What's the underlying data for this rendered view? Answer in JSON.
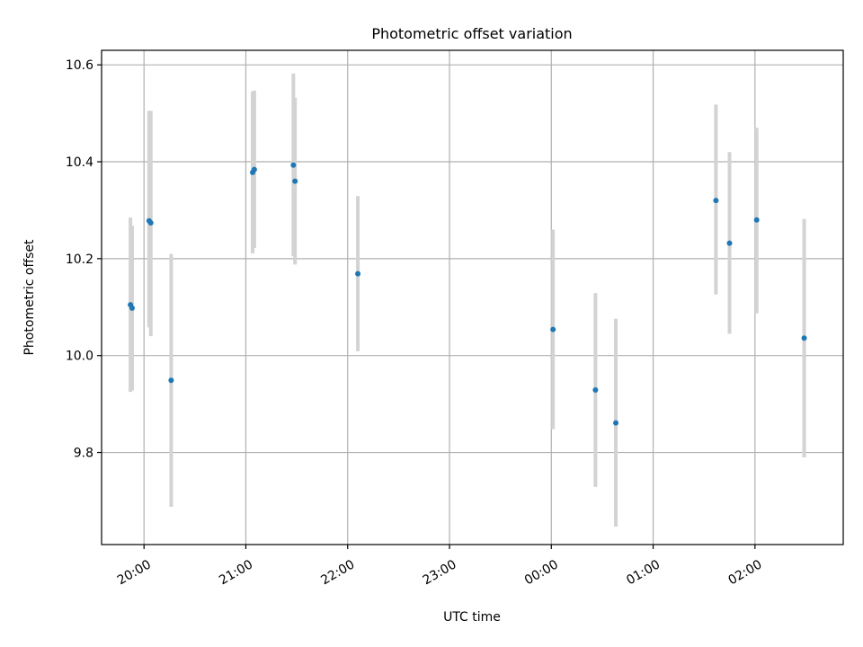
{
  "chart_data": {
    "type": "scatter",
    "title": "Photometric offset variation",
    "xlabel": "UTC time",
    "ylabel": "Photometric offset",
    "x_tick_labels": [
      "20:00",
      "21:00",
      "22:00",
      "23:00",
      "00:00",
      "01:00",
      "02:00"
    ],
    "y_tick_labels": [
      "9.8",
      "10.0",
      "10.2",
      "10.4",
      "10.6"
    ],
    "xlim": [
      "19:35",
      "02:52"
    ],
    "ylim": [
      9.61,
      10.63
    ],
    "grid": true,
    "legend": "none",
    "colors": {
      "point": "#1f77b4",
      "errorbar": "#d3d3d3",
      "grid": "#b0b0b0"
    },
    "series": [
      {
        "points": [
          {
            "x": "19:52",
            "y": 10.105,
            "ylow": 9.925,
            "yhigh": 10.285
          },
          {
            "x": "19:53",
            "y": 10.098,
            "ylow": 9.928,
            "yhigh": 10.268
          },
          {
            "x": "20:03",
            "y": 10.278,
            "ylow": 10.058,
            "yhigh": 10.505
          },
          {
            "x": "20:04",
            "y": 10.274,
            "ylow": 10.04,
            "yhigh": 10.505
          },
          {
            "x": "20:16",
            "y": 9.949,
            "ylow": 9.688,
            "yhigh": 10.21
          },
          {
            "x": "21:04",
            "y": 10.378,
            "ylow": 10.211,
            "yhigh": 10.545
          },
          {
            "x": "21:05",
            "y": 10.384,
            "ylow": 10.222,
            "yhigh": 10.547
          },
          {
            "x": "21:28",
            "y": 10.393,
            "ylow": 10.205,
            "yhigh": 10.582
          },
          {
            "x": "21:29",
            "y": 10.36,
            "ylow": 10.188,
            "yhigh": 10.532
          },
          {
            "x": "22:06",
            "y": 10.169,
            "ylow": 10.009,
            "yhigh": 10.329
          },
          {
            "x": "00:01",
            "y": 10.054,
            "ylow": 9.848,
            "yhigh": 10.26
          },
          {
            "x": "00:26",
            "y": 9.929,
            "ylow": 9.729,
            "yhigh": 10.129
          },
          {
            "x": "00:38",
            "y": 9.861,
            "ylow": 9.647,
            "yhigh": 10.076
          },
          {
            "x": "01:37",
            "y": 10.32,
            "ylow": 10.126,
            "yhigh": 10.518
          },
          {
            "x": "01:45",
            "y": 10.232,
            "ylow": 10.045,
            "yhigh": 10.42
          },
          {
            "x": "02:01",
            "y": 10.28,
            "ylow": 10.087,
            "yhigh": 10.47
          },
          {
            "x": "02:29",
            "y": 10.036,
            "ylow": 9.79,
            "yhigh": 10.282
          }
        ]
      }
    ]
  }
}
